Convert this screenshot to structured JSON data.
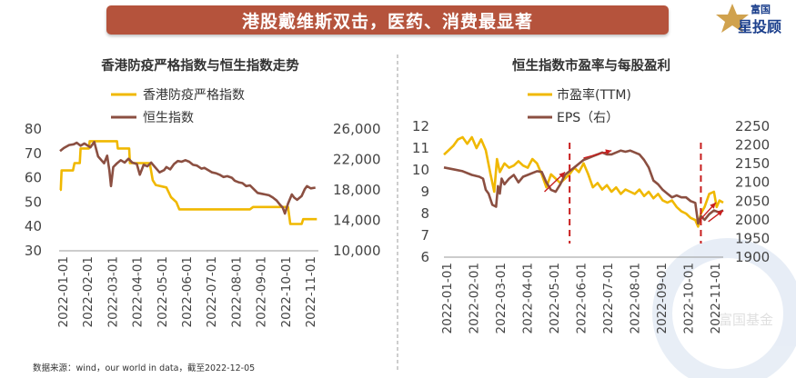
{
  "banner": {
    "title": "港股戴维斯双击，医药、消费最显著"
  },
  "logo": {
    "line1": "富国",
    "line2": "星投顾"
  },
  "watermark": {
    "text": "富国基金"
  },
  "source": "数据来源：wind，our world in data，截至2022-12-05",
  "colors": {
    "yellow": "#f0b800",
    "brown": "#8b4f41",
    "banner": "#b5533c",
    "red": "#c81e1e"
  },
  "chart_data": [
    {
      "type": "line",
      "title": "香港防疫严格指数与恒生指数走势",
      "legend": [
        "香港防疫严格指数",
        "恒生指数"
      ],
      "x_ticks": [
        "2022-01-01",
        "2022-02-01",
        "2022-03-01",
        "2022-04-01",
        "2022-05-01",
        "2022-06-01",
        "2022-07-01",
        "2022-08-01",
        "2022-09-01",
        "2022-10-01",
        "2022-11-01"
      ],
      "y_left": {
        "ticks": [
          "30",
          "40",
          "50",
          "60",
          "70",
          "80"
        ],
        "range": [
          30,
          80
        ]
      },
      "y_right": {
        "ticks": [
          "10,000",
          "14,000",
          "18,000",
          "22,000",
          "26,000"
        ],
        "range": [
          10000,
          26000
        ]
      },
      "series": [
        {
          "name": "香港防疫严格指数",
          "axis": "left",
          "color": "#f0b800",
          "points": [
            [
              0,
              55
            ],
            [
              1,
              55
            ],
            [
              2,
              63
            ],
            [
              17,
              63
            ],
            [
              19,
              66
            ],
            [
              26,
              66
            ],
            [
              27,
              72
            ],
            [
              38,
              72
            ],
            [
              39,
              75
            ],
            [
              75,
              75
            ],
            [
              76,
              72
            ],
            [
              91,
              72
            ],
            [
              92,
              66
            ],
            [
              118,
              66
            ],
            [
              122,
              59
            ],
            [
              126,
              57
            ],
            [
              140,
              56
            ],
            [
              146,
              52
            ],
            [
              153,
              50
            ],
            [
              157,
              47
            ],
            [
              170,
              47
            ],
            [
              215,
              47
            ],
            [
              250,
              47
            ],
            [
              254,
              48
            ],
            [
              300,
              48
            ],
            [
              303,
              41
            ],
            [
              318,
              41
            ],
            [
              320,
              43
            ],
            [
              338,
              43
            ]
          ]
        },
        {
          "name": "恒生指数",
          "axis": "right",
          "color": "#8b4f41",
          "points": [
            [
              0,
              23100
            ],
            [
              5,
              23500
            ],
            [
              12,
              23900
            ],
            [
              18,
              24000
            ],
            [
              22,
              24200
            ],
            [
              27,
              23800
            ],
            [
              32,
              24100
            ],
            [
              40,
              23600
            ],
            [
              45,
              24300
            ],
            [
              50,
              22400
            ],
            [
              58,
              21500
            ],
            [
              62,
              22500
            ],
            [
              65,
              20500
            ],
            [
              67,
              18500
            ],
            [
              70,
              21000
            ],
            [
              75,
              21500
            ],
            [
              80,
              21900
            ],
            [
              85,
              21600
            ],
            [
              90,
              22100
            ],
            [
              95,
              21600
            ],
            [
              101,
              21400
            ],
            [
              105,
              20000
            ],
            [
              110,
              21300
            ],
            [
              115,
              21100
            ],
            [
              120,
              21600
            ],
            [
              125,
              21000
            ],
            [
              131,
              20300
            ],
            [
              137,
              20600
            ],
            [
              140,
              21000
            ],
            [
              145,
              20700
            ],
            [
              150,
              21400
            ],
            [
              155,
              21800
            ],
            [
              160,
              21700
            ],
            [
              165,
              21900
            ],
            [
              170,
              21700
            ],
            [
              175,
              21300
            ],
            [
              180,
              21200
            ],
            [
              186,
              20800
            ],
            [
              190,
              20900
            ],
            [
              195,
              20600
            ],
            [
              200,
              20300
            ],
            [
              205,
              20200
            ],
            [
              210,
              20000
            ],
            [
              215,
              19700
            ],
            [
              220,
              19800
            ],
            [
              226,
              19600
            ],
            [
              230,
              19200
            ],
            [
              235,
              19000
            ],
            [
              240,
              18900
            ],
            [
              245,
              18500
            ],
            [
              250,
              18600
            ],
            [
              255,
              18100
            ],
            [
              260,
              17600
            ],
            [
              265,
              17500
            ],
            [
              270,
              17400
            ],
            [
              275,
              17300
            ],
            [
              280,
              17000
            ],
            [
              285,
              16600
            ],
            [
              290,
              16000
            ],
            [
              293,
              15700
            ],
            [
              296,
              14900
            ],
            [
              300,
              16200
            ],
            [
              305,
              17400
            ],
            [
              308,
              17000
            ],
            [
              312,
              16700
            ],
            [
              318,
              17200
            ],
            [
              322,
              18100
            ],
            [
              325,
              18500
            ],
            [
              330,
              18200
            ],
            [
              336,
              18300
            ]
          ]
        }
      ]
    },
    {
      "type": "line",
      "title": "恒生指数市盈率与每股盈利",
      "legend": [
        "市盈率(TTM)",
        "EPS（右）"
      ],
      "x_ticks": [
        "2022-01-01",
        "2022-02-01",
        "2022-03-01",
        "2022-04-01",
        "2022-05-01",
        "2022-06-01",
        "2022-07-01",
        "2022-08-01",
        "2022-09-01",
        "2022-10-01",
        "2022-11-01"
      ],
      "y_left": {
        "ticks": [
          "6",
          "7",
          "8",
          "9",
          "10",
          "11",
          "12"
        ],
        "range": [
          6,
          12
        ]
      },
      "y_right": {
        "ticks": [
          "1900",
          "1950",
          "2000",
          "2050",
          "2100",
          "2150",
          "2200",
          "2250"
        ],
        "range": [
          1900,
          2250
        ]
      },
      "series": [
        {
          "name": "市盈率(TTM)",
          "axis": "left",
          "color": "#f0b800",
          "points": [
            [
              0,
              10.7
            ],
            [
              5,
              10.9
            ],
            [
              10,
              11.1
            ],
            [
              15,
              11.4
            ],
            [
              20,
              11.5
            ],
            [
              25,
              11.2
            ],
            [
              30,
              11.5
            ],
            [
              35,
              11.0
            ],
            [
              40,
              11.4
            ],
            [
              45,
              10.9
            ],
            [
              50,
              9.8
            ],
            [
              54,
              9.0
            ],
            [
              57,
              10.5
            ],
            [
              60,
              9.9
            ],
            [
              65,
              10.3
            ],
            [
              70,
              10.1
            ],
            [
              75,
              10.2
            ],
            [
              80,
              10.4
            ],
            [
              85,
              10.2
            ],
            [
              90,
              10.1
            ],
            [
              95,
              10.5
            ],
            [
              100,
              10.3
            ],
            [
              105,
              9.8
            ],
            [
              110,
              9.2
            ],
            [
              115,
              9.8
            ],
            [
              120,
              9.6
            ],
            [
              125,
              9.4
            ],
            [
              130,
              9.6
            ],
            [
              135,
              9.8
            ],
            [
              140,
              10.1
            ],
            [
              145,
              9.9
            ],
            [
              150,
              10.3
            ],
            [
              155,
              9.8
            ],
            [
              160,
              9.2
            ],
            [
              165,
              9.4
            ],
            [
              170,
              9.1
            ],
            [
              175,
              9.3
            ],
            [
              180,
              9.0
            ],
            [
              185,
              9.2
            ],
            [
              190,
              8.9
            ],
            [
              195,
              9.1
            ],
            [
              200,
              9.0
            ],
            [
              205,
              8.9
            ],
            [
              210,
              9.1
            ],
            [
              215,
              8.8
            ],
            [
              220,
              9.0
            ],
            [
              225,
              8.7
            ],
            [
              230,
              8.9
            ],
            [
              235,
              8.6
            ],
            [
              240,
              8.5
            ],
            [
              245,
              8.6
            ],
            [
              250,
              8.3
            ],
            [
              255,
              8.1
            ],
            [
              260,
              8.0
            ],
            [
              265,
              7.8
            ],
            [
              270,
              7.7
            ],
            [
              273,
              7.4
            ],
            [
              276,
              8.0
            ],
            [
              280,
              8.3
            ],
            [
              285,
              8.9
            ],
            [
              290,
              9.0
            ],
            [
              293,
              8.3
            ],
            [
              296,
              8.6
            ],
            [
              300,
              8.5
            ]
          ]
        },
        {
          "name": "EPS（右）",
          "axis": "right",
          "color": "#8b4f41",
          "points": [
            [
              0,
              2140
            ],
            [
              10,
              2135
            ],
            [
              20,
              2130
            ],
            [
              30,
              2120
            ],
            [
              38,
              2115
            ],
            [
              42,
              2110
            ],
            [
              45,
              2080
            ],
            [
              48,
              2070
            ],
            [
              52,
              2040
            ],
            [
              56,
              2035
            ],
            [
              58,
              2090
            ],
            [
              60,
              2070
            ],
            [
              62,
              2110
            ],
            [
              65,
              2095
            ],
            [
              70,
              2110
            ],
            [
              75,
              2120
            ],
            [
              80,
              2100
            ],
            [
              85,
              2115
            ],
            [
              90,
              2120
            ],
            [
              95,
              2125
            ],
            [
              100,
              2130
            ],
            [
              105,
              2128
            ],
            [
              110,
              2100
            ],
            [
              115,
              2080
            ],
            [
              120,
              2075
            ],
            [
              125,
              2095
            ],
            [
              130,
              2120
            ],
            [
              135,
              2130
            ],
            [
              140,
              2140
            ],
            [
              145,
              2150
            ],
            [
              150,
              2160
            ],
            [
              155,
              2165
            ],
            [
              160,
              2170
            ],
            [
              165,
              2175
            ],
            [
              170,
              2180
            ],
            [
              175,
              2175
            ],
            [
              180,
              2175
            ],
            [
              185,
              2180
            ],
            [
              190,
              2185
            ],
            [
              195,
              2182
            ],
            [
              200,
              2185
            ],
            [
              205,
              2180
            ],
            [
              210,
              2175
            ],
            [
              215,
              2160
            ],
            [
              220,
              2140
            ],
            [
              225,
              2105
            ],
            [
              230,
              2095
            ],
            [
              235,
              2080
            ],
            [
              240,
              2070
            ],
            [
              245,
              2060
            ],
            [
              250,
              2065
            ],
            [
              255,
              2060
            ],
            [
              260,
              2060
            ],
            [
              265,
              2050
            ],
            [
              270,
              2045
            ],
            [
              273,
              1990
            ],
            [
              276,
              2010
            ],
            [
              280,
              2000
            ],
            [
              285,
              2015
            ],
            [
              290,
              2025
            ],
            [
              295,
              2020
            ],
            [
              300,
              2025
            ]
          ]
        }
      ],
      "annotations": {
        "dashed_lines_at": [
          135,
          276
        ],
        "arrows": 4
      }
    }
  ]
}
